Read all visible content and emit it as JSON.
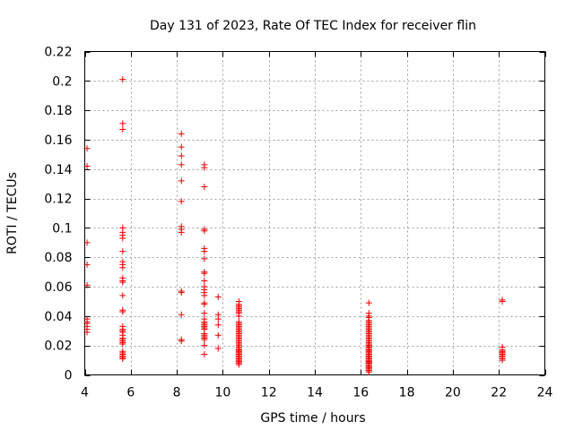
{
  "chart_data": {
    "type": "scatter",
    "title": "Day 131 of 2023, Rate Of TEC Index for receiver flin",
    "xlabel": "GPS time / hours",
    "ylabel": "ROTI / TECUs",
    "xlim": [
      4,
      24
    ],
    "ylim": [
      0,
      0.22
    ],
    "xticks": [
      4,
      6,
      8,
      10,
      12,
      14,
      16,
      18,
      20,
      22,
      24
    ],
    "xtick_labels": [
      "4",
      "6",
      "8",
      "10",
      "12",
      "14",
      "16",
      "18",
      "20",
      "22",
      "24"
    ],
    "yticks": [
      0,
      0.02,
      0.04,
      0.06,
      0.08,
      0.1,
      0.12,
      0.14,
      0.16,
      0.18,
      0.2,
      0.22
    ],
    "ytick_labels": [
      "0",
      "0.02",
      "0.04",
      "0.06",
      "0.08",
      "0.1",
      "0.12",
      "0.14",
      "0.16",
      "0.18",
      "0.2",
      "0.22"
    ],
    "grid": true,
    "marker": "+",
    "color": "#ee0000",
    "series": [
      {
        "x": [
          4.1,
          4.1,
          4.1,
          4.1,
          4.1,
          4.1,
          4.1,
          4.1,
          4.1,
          4.1,
          4.1,
          5.65,
          5.65,
          5.65,
          5.65,
          5.65,
          5.65,
          5.65,
          5.65,
          5.65,
          5.65,
          5.65,
          5.65,
          5.65,
          5.65,
          5.65,
          5.65,
          5.65,
          5.65,
          5.65,
          5.65,
          5.65,
          5.65,
          5.65,
          5.65,
          5.65,
          5.65,
          5.65,
          5.65,
          5.65,
          5.65,
          5.65,
          5.65,
          5.65,
          5.65,
          8.2,
          8.2,
          8.2,
          8.2,
          8.2,
          8.2,
          8.2,
          8.2,
          8.2,
          8.2,
          8.2,
          8.2,
          8.2,
          8.2,
          9.2,
          9.2,
          9.2,
          9.2,
          9.2,
          9.2,
          9.2,
          9.2,
          9.2,
          9.2,
          9.2,
          9.2,
          9.2,
          9.2,
          9.2,
          9.2,
          9.2,
          9.2,
          9.2,
          9.2,
          9.2,
          9.2,
          9.2,
          9.2,
          9.2,
          9.2,
          9.2,
          9.2,
          9.2,
          9.2,
          9.2,
          9.2,
          9.8,
          9.8,
          9.8,
          9.8,
          9.8,
          9.8,
          10.7,
          10.7,
          10.7,
          10.7,
          10.7,
          10.7,
          10.7,
          10.7,
          10.7,
          10.7,
          10.7,
          10.7,
          10.7,
          10.7,
          10.7,
          10.7,
          10.7,
          10.7,
          10.7,
          10.7,
          10.7,
          10.7,
          10.7,
          10.7,
          10.7,
          10.7,
          10.7,
          10.7,
          10.7,
          10.7,
          10.7,
          10.7,
          10.7,
          10.7,
          10.7,
          10.7,
          10.7,
          10.7,
          10.7,
          10.7,
          10.7,
          10.7,
          10.7,
          10.7,
          10.7,
          10.7,
          10.7,
          10.7,
          16.35,
          16.35,
          16.35,
          16.35,
          16.35,
          16.35,
          16.35,
          16.35,
          16.35,
          16.35,
          16.35,
          16.35,
          16.35,
          16.35,
          16.35,
          16.35,
          16.35,
          16.35,
          16.35,
          16.35,
          16.35,
          16.35,
          16.35,
          16.35,
          16.35,
          16.35,
          16.35,
          16.35,
          16.35,
          16.35,
          16.35,
          16.35,
          16.35,
          16.35,
          16.35,
          16.35,
          16.35,
          16.35,
          16.35,
          16.35,
          16.35,
          16.35,
          16.35,
          16.35,
          16.35,
          16.35,
          16.35,
          16.35,
          16.35,
          16.35,
          16.35,
          16.35,
          16.35,
          16.35,
          16.35,
          16.35,
          16.35,
          16.35,
          16.35,
          16.35,
          16.35,
          16.35,
          16.35,
          16.35,
          16.35,
          22.15,
          22.15,
          22.15,
          22.15,
          22.15,
          22.15,
          22.15,
          22.15,
          22.15,
          22.15,
          22.15,
          22.15,
          22.15,
          22.15,
          22.15
        ],
        "y": [
          0.154,
          0.142,
          0.09,
          0.075,
          0.061,
          0.038,
          0.036,
          0.035,
          0.033,
          0.031,
          0.029,
          0.201,
          0.171,
          0.167,
          0.1,
          0.097,
          0.095,
          0.093,
          0.084,
          0.077,
          0.075,
          0.073,
          0.066,
          0.064,
          0.063,
          0.054,
          0.044,
          0.043,
          0.033,
          0.031,
          0.03,
          0.029,
          0.027,
          0.025,
          0.024,
          0.023,
          0.022,
          0.021,
          0.016,
          0.015,
          0.014,
          0.013,
          0.012,
          0.012,
          0.011,
          0.164,
          0.155,
          0.149,
          0.143,
          0.132,
          0.118,
          0.101,
          0.099,
          0.097,
          0.057,
          0.056,
          0.041,
          0.024,
          0.023,
          0.143,
          0.141,
          0.128,
          0.099,
          0.098,
          0.086,
          0.084,
          0.079,
          0.07,
          0.069,
          0.064,
          0.06,
          0.058,
          0.056,
          0.054,
          0.049,
          0.048,
          0.042,
          0.038,
          0.036,
          0.035,
          0.034,
          0.033,
          0.032,
          0.031,
          0.028,
          0.027,
          0.026,
          0.025,
          0.024,
          0.02,
          0.014,
          0.053,
          0.041,
          0.038,
          0.034,
          0.027,
          0.018,
          0.05,
          0.048,
          0.047,
          0.046,
          0.045,
          0.044,
          0.043,
          0.042,
          0.04,
          0.036,
          0.035,
          0.034,
          0.033,
          0.032,
          0.031,
          0.03,
          0.029,
          0.028,
          0.027,
          0.026,
          0.025,
          0.024,
          0.023,
          0.022,
          0.021,
          0.02,
          0.019,
          0.018,
          0.017,
          0.017,
          0.016,
          0.016,
          0.015,
          0.015,
          0.014,
          0.014,
          0.013,
          0.013,
          0.012,
          0.012,
          0.011,
          0.011,
          0.01,
          0.01,
          0.009,
          0.009,
          0.008,
          0.007,
          0.049,
          0.042,
          0.04,
          0.039,
          0.037,
          0.036,
          0.035,
          0.034,
          0.033,
          0.032,
          0.031,
          0.03,
          0.029,
          0.028,
          0.027,
          0.026,
          0.025,
          0.024,
          0.023,
          0.022,
          0.021,
          0.021,
          0.02,
          0.02,
          0.019,
          0.019,
          0.018,
          0.018,
          0.017,
          0.017,
          0.016,
          0.016,
          0.015,
          0.015,
          0.014,
          0.014,
          0.013,
          0.013,
          0.012,
          0.012,
          0.012,
          0.011,
          0.011,
          0.011,
          0.01,
          0.01,
          0.01,
          0.009,
          0.009,
          0.009,
          0.008,
          0.008,
          0.008,
          0.007,
          0.007,
          0.007,
          0.006,
          0.006,
          0.005,
          0.005,
          0.004,
          0.004,
          0.003,
          0.003,
          0.002,
          0.051,
          0.05,
          0.019,
          0.017,
          0.016,
          0.016,
          0.015,
          0.015,
          0.014,
          0.014,
          0.013,
          0.013,
          0.012,
          0.011,
          0.01
        ]
      }
    ]
  }
}
